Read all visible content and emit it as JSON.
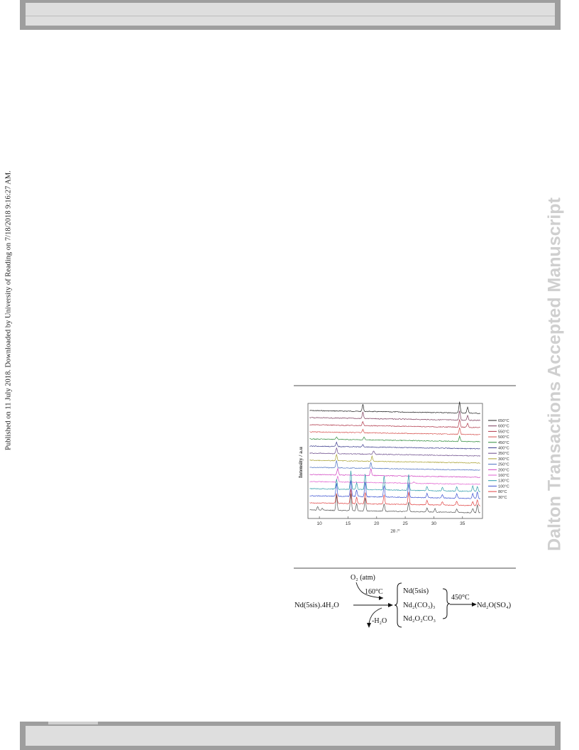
{
  "page": {
    "side_note": "Published on 11 July 2018. Downloaded by University of Reading on 7/18/2018 9:16:27 AM.",
    "watermark": "Dalton Transactions Accepted Manuscript"
  },
  "chart_data": {
    "type": "line",
    "xlabel": "2θ /°",
    "ylabel": "Intensity / a.u",
    "xlim": [
      8,
      38.5
    ],
    "x_ticks": [
      10,
      15,
      20,
      25,
      30,
      35
    ],
    "legend_position": "right",
    "series": [
      {
        "name": "650°C",
        "color": "#222222",
        "peaks": [
          [
            17.6,
            10
          ],
          [
            34.5,
            16
          ],
          [
            35.9,
            9
          ]
        ]
      },
      {
        "name": "600°C",
        "color": "#7a3a5a",
        "peaks": [
          [
            17.6,
            9
          ],
          [
            34.5,
            13
          ],
          [
            35.9,
            7
          ]
        ]
      },
      {
        "name": "550°C",
        "color": "#b0384a",
        "peaks": [
          [
            17.6,
            6
          ],
          [
            34.5,
            11
          ],
          [
            35.9,
            6
          ]
        ]
      },
      {
        "name": "500°C",
        "color": "#d6504d",
        "peaks": [
          [
            17.6,
            5
          ],
          [
            34.5,
            9
          ]
        ]
      },
      {
        "name": "450°C",
        "color": "#2e8b3a",
        "peaks": [
          [
            13.0,
            4
          ],
          [
            17.8,
            4
          ],
          [
            34.5,
            7
          ]
        ]
      },
      {
        "name": "400°C",
        "color": "#3a3a8c",
        "peaks": [
          [
            13.0,
            6
          ],
          [
            17.6,
            3
          ]
        ]
      },
      {
        "name": "350°C",
        "color": "#6a4a8a",
        "peaks": [
          [
            13.0,
            8
          ],
          [
            19.5,
            5
          ]
        ]
      },
      {
        "name": "300°C",
        "color": "#a8a030",
        "peaks": [
          [
            13.0,
            9
          ],
          [
            19.2,
            7
          ]
        ]
      },
      {
        "name": "250°C",
        "color": "#4a6fc0",
        "peaks": [
          [
            13.0,
            10
          ],
          [
            19.0,
            8
          ]
        ]
      },
      {
        "name": "200°C",
        "color": "#d040c0",
        "peaks": [
          [
            13.2,
            9
          ],
          [
            19.0,
            10
          ]
        ]
      },
      {
        "name": "160°C",
        "color": "#e060d0",
        "peaks": [
          [
            13.2,
            8
          ],
          [
            26.5,
            2
          ]
        ]
      },
      {
        "name": "130°C",
        "color": "#2a9aa8",
        "peaks": [
          [
            13.0,
            14
          ],
          [
            15.5,
            26
          ],
          [
            16.5,
            10
          ],
          [
            18.0,
            22
          ],
          [
            21.3,
            20
          ],
          [
            25.6,
            22
          ],
          [
            28.8,
            6
          ],
          [
            31.5,
            5
          ],
          [
            34.0,
            6
          ],
          [
            36.8,
            8
          ],
          [
            37.6,
            7
          ]
        ]
      },
      {
        "name": "100°C",
        "color": "#3a50d0",
        "peaks": [
          [
            13.0,
            18
          ],
          [
            15.5,
            22
          ],
          [
            16.5,
            9
          ],
          [
            18.0,
            20
          ],
          [
            21.3,
            16
          ],
          [
            25.6,
            20
          ],
          [
            28.8,
            6
          ],
          [
            31.5,
            5
          ],
          [
            34.0,
            6
          ],
          [
            36.8,
            7
          ],
          [
            37.6,
            9
          ]
        ]
      },
      {
        "name": "80°C",
        "color": "#e04040",
        "peaks": [
          [
            13.0,
            14
          ],
          [
            15.5,
            20
          ],
          [
            16.5,
            9
          ],
          [
            18.0,
            16
          ],
          [
            21.3,
            13
          ],
          [
            25.6,
            18
          ],
          [
            28.8,
            6
          ],
          [
            31.5,
            5
          ],
          [
            34.0,
            6
          ],
          [
            36.8,
            6
          ],
          [
            37.6,
            8
          ]
        ]
      },
      {
        "name": "30°C",
        "color": "#555555",
        "peaks": [
          [
            9.7,
            5
          ],
          [
            10.5,
            3
          ],
          [
            13.0,
            22
          ],
          [
            15.5,
            24
          ],
          [
            16.5,
            10
          ],
          [
            18.0,
            18
          ],
          [
            21.3,
            11
          ],
          [
            25.6,
            13
          ],
          [
            28.8,
            5
          ],
          [
            30.2,
            5
          ],
          [
            34.0,
            5
          ],
          [
            36.8,
            6
          ],
          [
            37.6,
            11
          ]
        ]
      }
    ]
  },
  "scheme": {
    "reactant": "Nd(5sis).4H₂O",
    "oxidant": "O₂ (atm)",
    "temp1": "160°C",
    "loss": "-H₂O",
    "intermediates": [
      "Nd(5sis)",
      "Nd₂(CO₃)₃",
      "Nd₂O₂CO₃"
    ],
    "temp2": "450°C",
    "product": "Nd₂O(SO₄)"
  }
}
